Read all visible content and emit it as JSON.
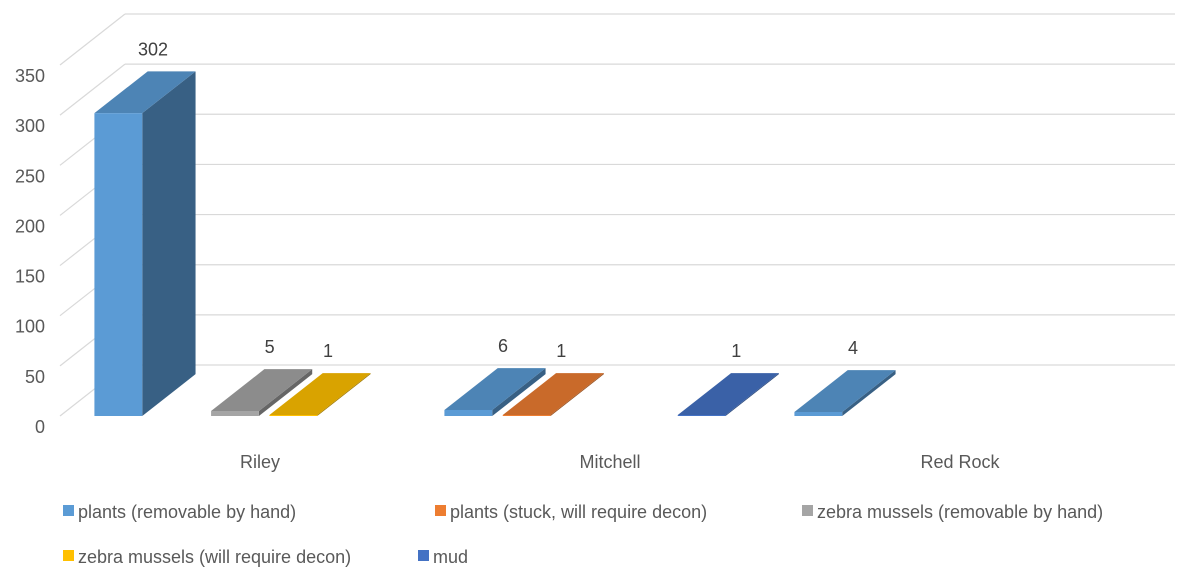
{
  "chart_data": {
    "type": "bar",
    "title": "",
    "xlabel": "",
    "ylabel": "",
    "ylim": [
      0,
      350
    ],
    "yticks": [
      0,
      50,
      100,
      150,
      200,
      250,
      300,
      350
    ],
    "grid": true,
    "legend_position": "bottom",
    "categories": [
      "Riley",
      "Mitchell",
      "Red Rock"
    ],
    "series": [
      {
        "name": "plants (removable by hand)",
        "color": "#5B9BD5",
        "values": [
          302,
          6,
          4
        ]
      },
      {
        "name": "plants (stuck, will require decon)",
        "color": "#ED7D31",
        "values": [
          null,
          1,
          null
        ]
      },
      {
        "name": "zebra mussels (removable by hand)",
        "color": "#A5A5A5",
        "values": [
          5,
          null,
          null
        ]
      },
      {
        "name": "zebra mussels (will require decon)",
        "color": "#FFC000",
        "values": [
          1,
          null,
          null
        ]
      },
      {
        "name": "mud",
        "color": "#4472C4",
        "values": [
          null,
          1,
          null
        ]
      }
    ]
  }
}
